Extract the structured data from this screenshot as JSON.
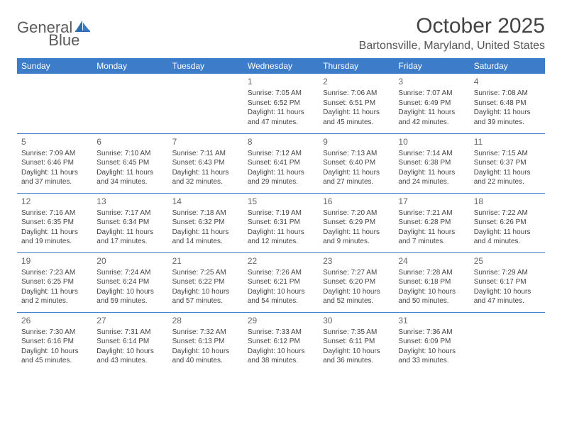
{
  "logo": {
    "text1": "General",
    "text2": "Blue"
  },
  "title": "October 2025",
  "location": "Bartonsville, Maryland, United States",
  "colors": {
    "header_bg": "#3d7cc9",
    "header_text": "#ffffff",
    "border": "#3d7cc9",
    "body_text": "#444444",
    "day_text": "#666666",
    "logo_gray": "#5a5a5a",
    "logo_blue": "#3d7cc9"
  },
  "day_headers": [
    "Sunday",
    "Monday",
    "Tuesday",
    "Wednesday",
    "Thursday",
    "Friday",
    "Saturday"
  ],
  "weeks": [
    [
      null,
      null,
      null,
      {
        "n": "1",
        "sr": "7:05 AM",
        "ss": "6:52 PM",
        "dl": "11 hours and 47 minutes."
      },
      {
        "n": "2",
        "sr": "7:06 AM",
        "ss": "6:51 PM",
        "dl": "11 hours and 45 minutes."
      },
      {
        "n": "3",
        "sr": "7:07 AM",
        "ss": "6:49 PM",
        "dl": "11 hours and 42 minutes."
      },
      {
        "n": "4",
        "sr": "7:08 AM",
        "ss": "6:48 PM",
        "dl": "11 hours and 39 minutes."
      }
    ],
    [
      {
        "n": "5",
        "sr": "7:09 AM",
        "ss": "6:46 PM",
        "dl": "11 hours and 37 minutes."
      },
      {
        "n": "6",
        "sr": "7:10 AM",
        "ss": "6:45 PM",
        "dl": "11 hours and 34 minutes."
      },
      {
        "n": "7",
        "sr": "7:11 AM",
        "ss": "6:43 PM",
        "dl": "11 hours and 32 minutes."
      },
      {
        "n": "8",
        "sr": "7:12 AM",
        "ss": "6:41 PM",
        "dl": "11 hours and 29 minutes."
      },
      {
        "n": "9",
        "sr": "7:13 AM",
        "ss": "6:40 PM",
        "dl": "11 hours and 27 minutes."
      },
      {
        "n": "10",
        "sr": "7:14 AM",
        "ss": "6:38 PM",
        "dl": "11 hours and 24 minutes."
      },
      {
        "n": "11",
        "sr": "7:15 AM",
        "ss": "6:37 PM",
        "dl": "11 hours and 22 minutes."
      }
    ],
    [
      {
        "n": "12",
        "sr": "7:16 AM",
        "ss": "6:35 PM",
        "dl": "11 hours and 19 minutes."
      },
      {
        "n": "13",
        "sr": "7:17 AM",
        "ss": "6:34 PM",
        "dl": "11 hours and 17 minutes."
      },
      {
        "n": "14",
        "sr": "7:18 AM",
        "ss": "6:32 PM",
        "dl": "11 hours and 14 minutes."
      },
      {
        "n": "15",
        "sr": "7:19 AM",
        "ss": "6:31 PM",
        "dl": "11 hours and 12 minutes."
      },
      {
        "n": "16",
        "sr": "7:20 AM",
        "ss": "6:29 PM",
        "dl": "11 hours and 9 minutes."
      },
      {
        "n": "17",
        "sr": "7:21 AM",
        "ss": "6:28 PM",
        "dl": "11 hours and 7 minutes."
      },
      {
        "n": "18",
        "sr": "7:22 AM",
        "ss": "6:26 PM",
        "dl": "11 hours and 4 minutes."
      }
    ],
    [
      {
        "n": "19",
        "sr": "7:23 AM",
        "ss": "6:25 PM",
        "dl": "11 hours and 2 minutes."
      },
      {
        "n": "20",
        "sr": "7:24 AM",
        "ss": "6:24 PM",
        "dl": "10 hours and 59 minutes."
      },
      {
        "n": "21",
        "sr": "7:25 AM",
        "ss": "6:22 PM",
        "dl": "10 hours and 57 minutes."
      },
      {
        "n": "22",
        "sr": "7:26 AM",
        "ss": "6:21 PM",
        "dl": "10 hours and 54 minutes."
      },
      {
        "n": "23",
        "sr": "7:27 AM",
        "ss": "6:20 PM",
        "dl": "10 hours and 52 minutes."
      },
      {
        "n": "24",
        "sr": "7:28 AM",
        "ss": "6:18 PM",
        "dl": "10 hours and 50 minutes."
      },
      {
        "n": "25",
        "sr": "7:29 AM",
        "ss": "6:17 PM",
        "dl": "10 hours and 47 minutes."
      }
    ],
    [
      {
        "n": "26",
        "sr": "7:30 AM",
        "ss": "6:16 PM",
        "dl": "10 hours and 45 minutes."
      },
      {
        "n": "27",
        "sr": "7:31 AM",
        "ss": "6:14 PM",
        "dl": "10 hours and 43 minutes."
      },
      {
        "n": "28",
        "sr": "7:32 AM",
        "ss": "6:13 PM",
        "dl": "10 hours and 40 minutes."
      },
      {
        "n": "29",
        "sr": "7:33 AM",
        "ss": "6:12 PM",
        "dl": "10 hours and 38 minutes."
      },
      {
        "n": "30",
        "sr": "7:35 AM",
        "ss": "6:11 PM",
        "dl": "10 hours and 36 minutes."
      },
      {
        "n": "31",
        "sr": "7:36 AM",
        "ss": "6:09 PM",
        "dl": "10 hours and 33 minutes."
      },
      null
    ]
  ],
  "labels": {
    "sunrise": "Sunrise: ",
    "sunset": "Sunset: ",
    "daylight": "Daylight: "
  }
}
